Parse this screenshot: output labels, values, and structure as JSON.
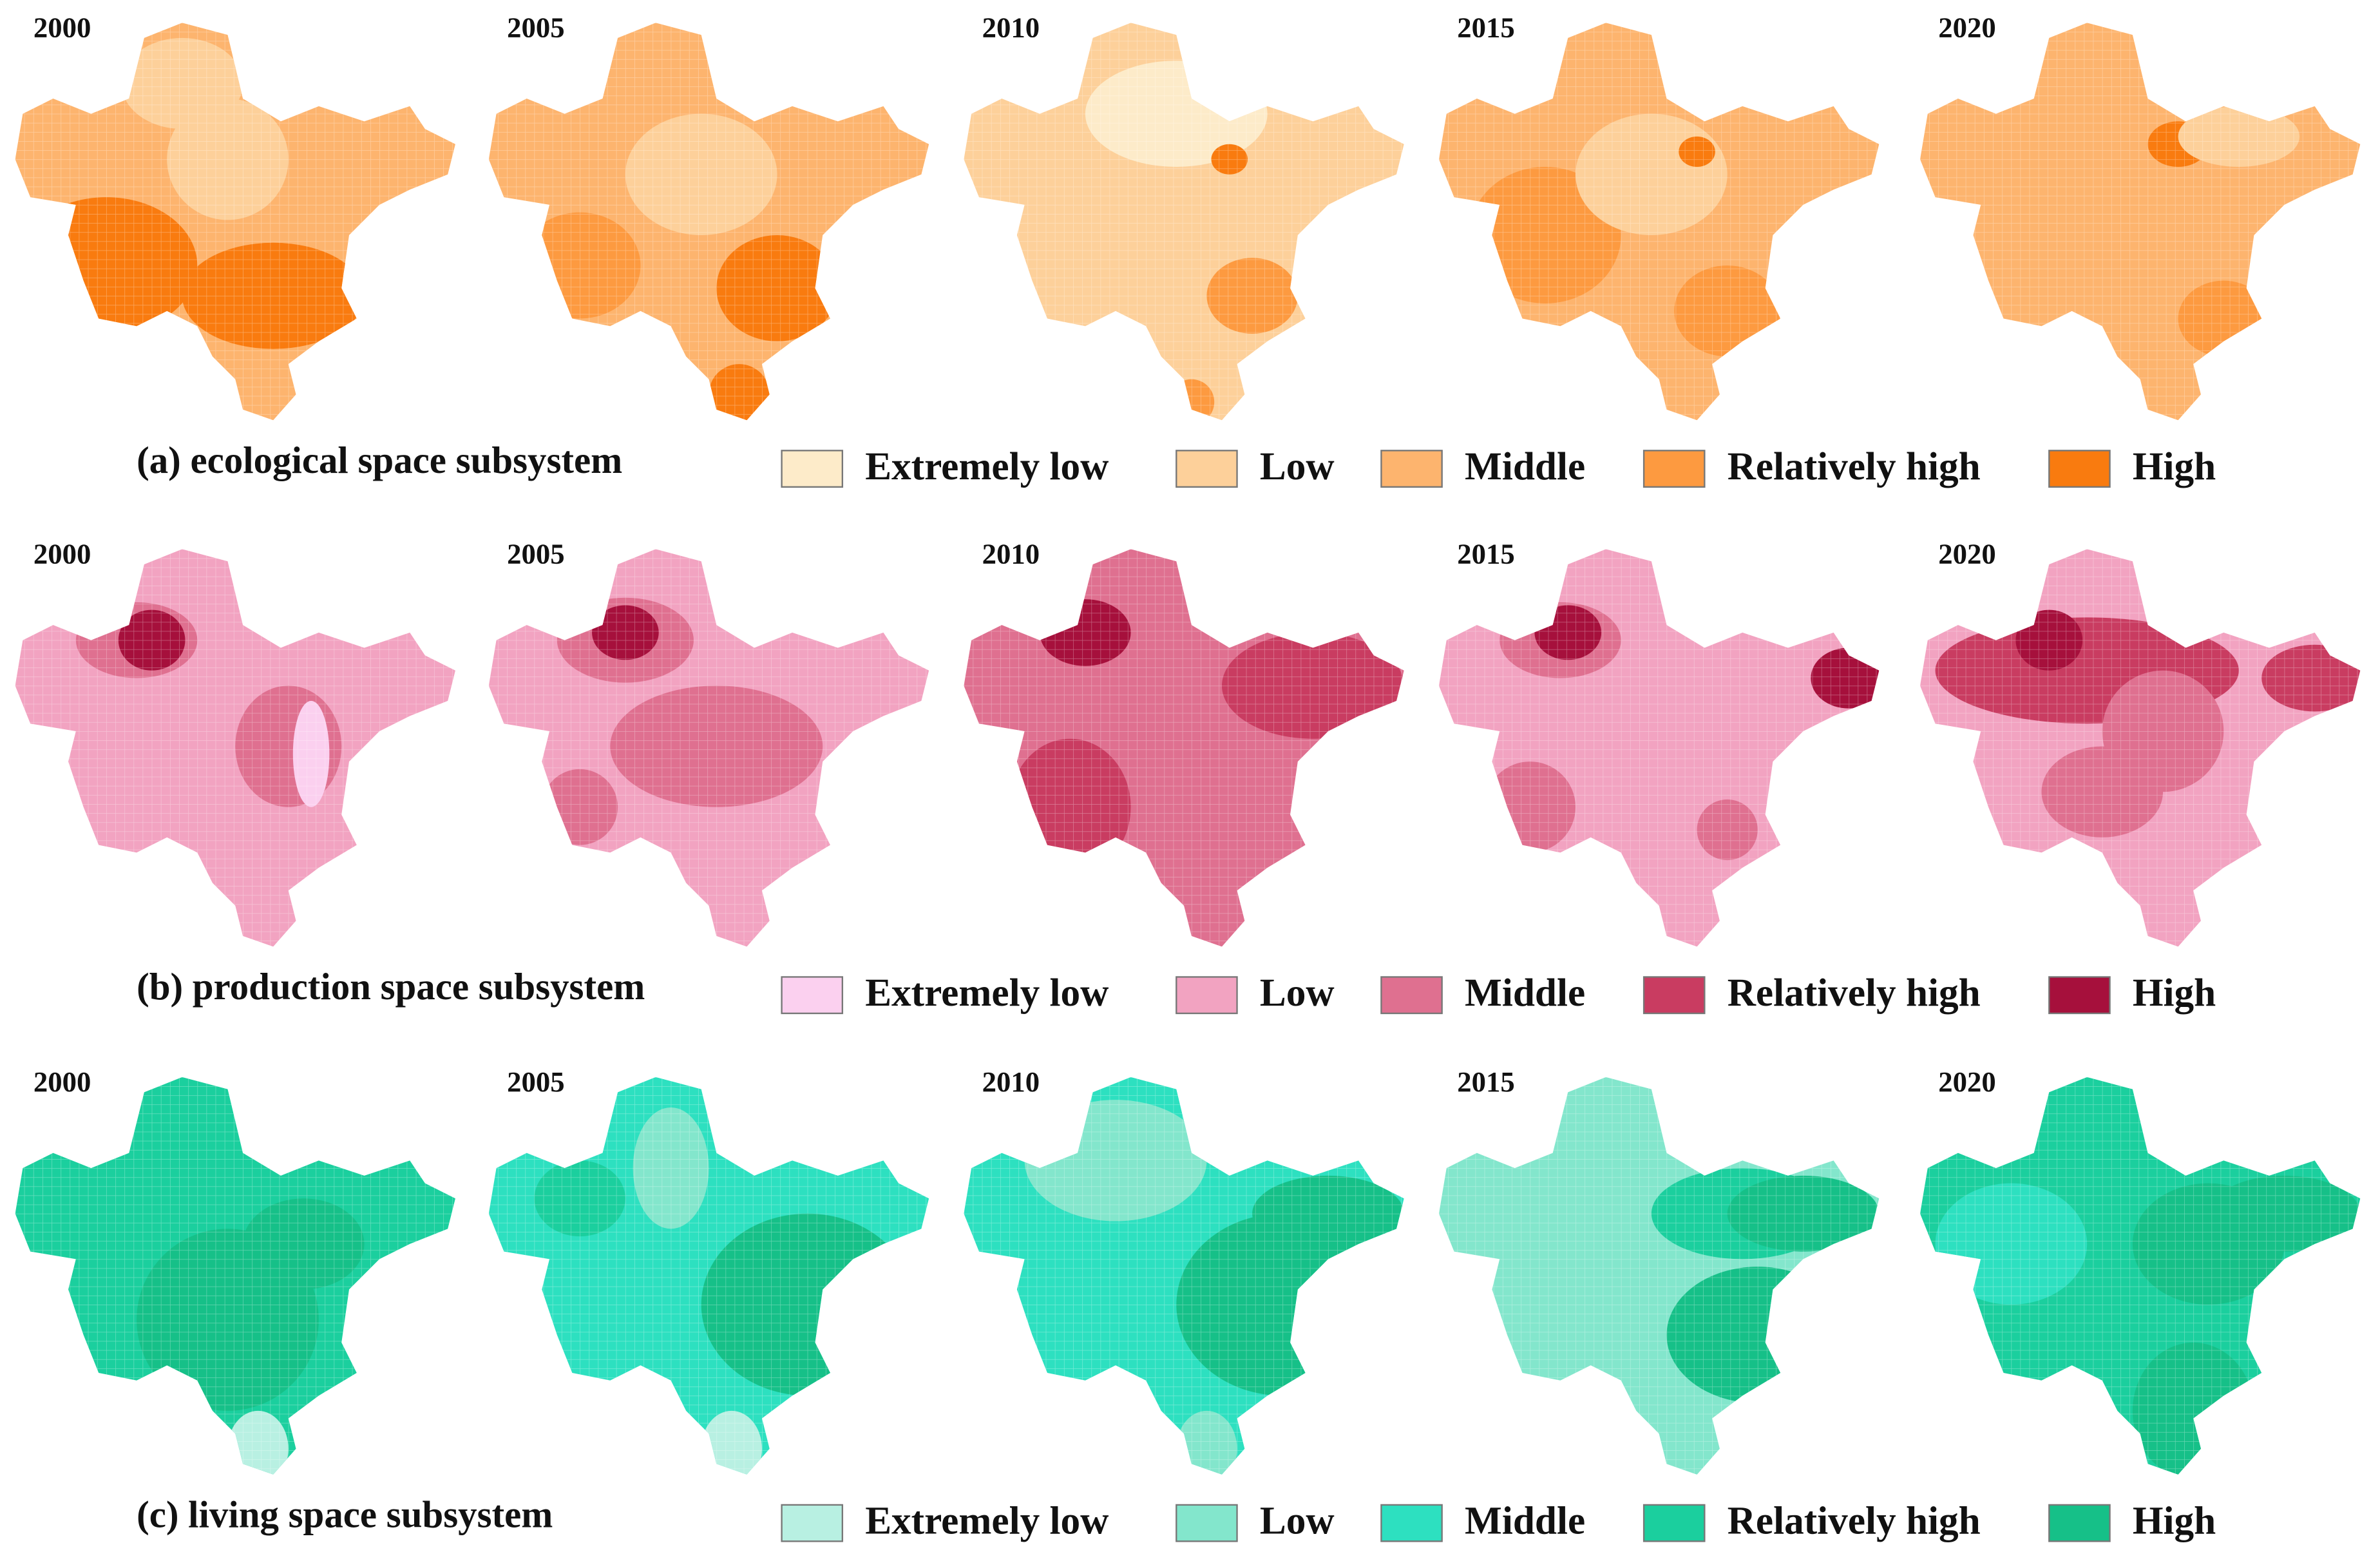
{
  "panels": [
    {
      "title": "(a) ecological space subsystem",
      "years": [
        "2000",
        "2005",
        "2010",
        "2015",
        "2020"
      ],
      "legend": [
        {
          "label": "Extremely low",
          "color": "#fdebc9"
        },
        {
          "label": "Low",
          "color": "#fdd09a"
        },
        {
          "label": "Middle",
          "color": "#fdb46e"
        },
        {
          "label": "Relatively high",
          "color": "#fd9a40"
        },
        {
          "label": "High",
          "color": "#f97b0f"
        }
      ]
    },
    {
      "title": "(b) production space subsystem",
      "years": [
        "2000",
        "2005",
        "2010",
        "2015",
        "2020"
      ],
      "legend": [
        {
          "label": "Extremely low",
          "color": "#fbd0ef"
        },
        {
          "label": "Low",
          "color": "#f2a3c1"
        },
        {
          "label": "Middle",
          "color": "#df7090"
        },
        {
          "label": "Relatively high",
          "color": "#c93c61"
        },
        {
          "label": "High",
          "color": "#a6103c"
        }
      ]
    },
    {
      "title": "(c) living space subsystem",
      "years": [
        "2000",
        "2005",
        "2010",
        "2015",
        "2020"
      ],
      "legend": [
        {
          "label": "Extremely low",
          "color": "#b8f0e2"
        },
        {
          "label": "Low",
          "color": "#83e6cc"
        },
        {
          "label": "Middle",
          "color": "#2de0c0"
        },
        {
          "label": "Relatively high",
          "color": "#1bcf9e"
        },
        {
          "label": "High",
          "color": "#16c088"
        }
      ]
    }
  ]
}
